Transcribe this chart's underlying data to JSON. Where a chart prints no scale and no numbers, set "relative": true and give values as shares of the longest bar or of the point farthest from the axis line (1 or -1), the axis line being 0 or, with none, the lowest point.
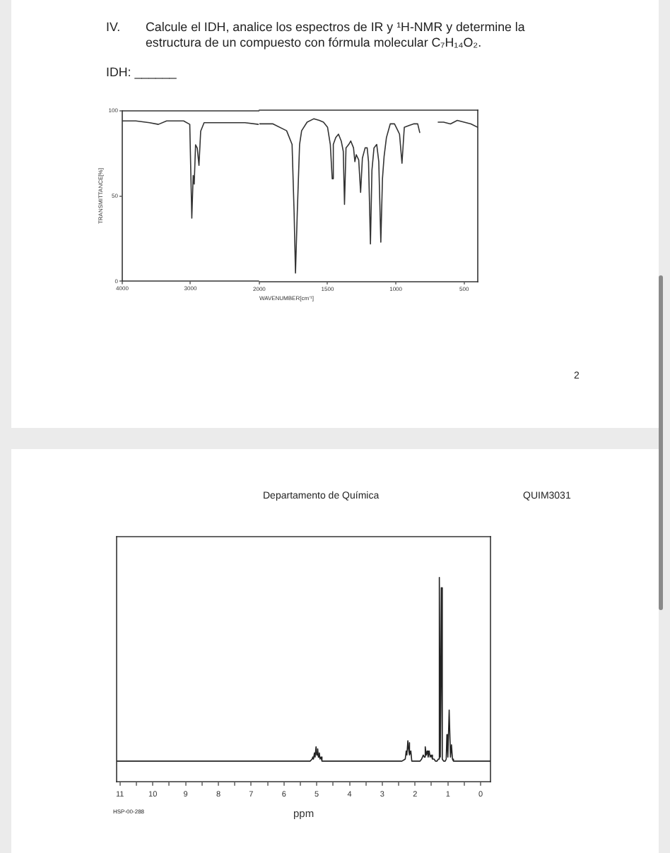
{
  "chart_data": [
    {
      "type": "line",
      "title": "Calcule el IDH, analice los espectros de IR y ¹H-NMR y determine la estructura de un compuesto con fórmula molecular C₇H₁₄O₂.",
      "annotations": [
        "IV.",
        "IDH: ______",
        "2"
      ],
      "ylabel": "TRANSMITTANCE[%]",
      "x": [
        4000,
        3800,
        3600,
        3470,
        3350,
        3100,
        3010,
        2980,
        2960,
        2945,
        2925,
        2900,
        2875,
        2850,
        2800,
        2500,
        2200,
        2000
      ],
      "series": [
        {
          "color": "#333333",
          "values": [
            94,
            94,
            93,
            92,
            94,
            94,
            92,
            37,
            62,
            57,
            80,
            78,
            68,
            88,
            93,
            93,
            93,
            92
          ]
        }
      ],
      "xlim": [
        4000,
        2000
      ],
      "xticks": [
        4000,
        3000
      ],
      "ylim": [
        0,
        100
      ],
      "yticks": [
        0,
        50,
        100
      ],
      "marker": "none"
    },
    {
      "type": "line",
      "xlabel": "WAVENUMBER[cm⁻¹]",
      "x": [
        2000,
        1900,
        1800,
        1760,
        1745,
        1735,
        1722,
        1705,
        1690,
        1650,
        1600,
        1560,
        1530,
        1500,
        1480,
        1466,
        1458,
        1440,
        1420,
        1400,
        1385,
        1376,
        1365,
        1345,
        1330,
        1310,
        1300,
        1290,
        1272,
        1258,
        1245,
        1225,
        1210,
        1200,
        1186,
        1175,
        1160,
        1140,
        1125,
        1110,
        1098,
        1086,
        1069,
        1041,
        1010,
        985,
        973,
        955,
        938,
        904,
        870,
        840,
        825,
        760,
        690,
        650,
        600,
        550,
        500,
        450,
        400
      ],
      "series": [
        {
          "color": "#333333",
          "values": [
            92,
            92,
            88,
            80,
            40,
            5,
            40,
            80,
            88,
            93,
            95,
            94,
            93,
            90,
            80,
            60,
            80,
            84,
            86,
            82,
            76,
            45,
            78,
            80,
            82,
            78,
            70,
            74,
            71,
            52,
            72,
            78,
            78,
            70,
            22,
            65,
            78,
            80,
            70,
            23,
            60,
            73,
            84,
            92,
            92,
            88,
            86,
            69,
            90,
            91,
            92,
            92,
            87,
            null,
            93,
            93,
            92,
            94,
            93,
            92,
            90
          ]
        }
      ],
      "xlim": [
        2000,
        400
      ],
      "xticks": [
        2000,
        1500,
        1000,
        500
      ],
      "ylim": [
        0,
        100
      ],
      "yticks": [
        0,
        50,
        100
      ],
      "tick_labels": "x",
      "marker": "none"
    },
    {
      "type": "line",
      "title": "Departamento de Química",
      "annotations": [
        "QUIM3031",
        "HSP-00-288"
      ],
      "xlabel": "ppm",
      "x": [
        11.1,
        5.2,
        5.14,
        5.12,
        5.1,
        5.07,
        5.05,
        5.02,
        5.0,
        4.97,
        4.95,
        4.92,
        4.9,
        4.87,
        4.84,
        4.8,
        2.4,
        2.3,
        2.27,
        2.25,
        2.22,
        2.2,
        2.18,
        2.16,
        2.13,
        2.1,
        1.85,
        1.8,
        1.75,
        1.72,
        1.69,
        1.66,
        1.63,
        1.6,
        1.57,
        1.54,
        1.51,
        1.47,
        1.42,
        1.38,
        1.33,
        1.29,
        1.26,
        1.23,
        1.2,
        1.17,
        1.13,
        1.08,
        1.05,
        1.03,
        1.0,
        0.96,
        0.92,
        0.89,
        0.86,
        0.83,
        -0.3
      ],
      "series": [
        {
          "color": "#222222",
          "values": [
            0.1,
            0.1,
            0.11,
            0.12,
            0.11,
            0.14,
            0.12,
            0.17,
            0.13,
            0.16,
            0.12,
            0.14,
            0.11,
            0.12,
            0.1,
            0.1,
            0.1,
            0.11,
            0.15,
            0.13,
            0.2,
            0.16,
            0.19,
            0.13,
            0.15,
            0.1,
            0.1,
            0.11,
            0.13,
            0.12,
            0.17,
            0.13,
            0.15,
            0.12,
            0.15,
            0.12,
            0.13,
            0.11,
            0.11,
            0.1,
            0.1,
            0.11,
            1.0,
            0.12,
            0.95,
            0.11,
            0.1,
            0.1,
            0.11,
            0.23,
            0.12,
            0.35,
            0.12,
            0.18,
            0.11,
            0.1,
            0.1
          ]
        }
      ],
      "relative": true,
      "xlim": [
        11.1,
        -0.3
      ],
      "xticks": [
        11,
        {
          "value": 10.5,
          "label": null
        },
        10,
        {
          "value": 9.5,
          "label": null
        },
        9,
        {
          "value": 8.5,
          "label": null
        },
        8,
        {
          "value": 7.5,
          "label": null
        },
        7,
        {
          "value": 6.5,
          "label": null
        },
        6,
        {
          "value": 5.5,
          "label": null
        },
        5,
        {
          "value": 4.5,
          "label": null
        },
        4,
        {
          "value": 3.5,
          "label": null
        },
        3,
        {
          "value": 2.5,
          "label": null
        },
        2,
        {
          "value": 1.5,
          "label": null
        },
        1,
        {
          "value": 0.5,
          "label": null
        },
        0
      ],
      "marker": "none"
    }
  ]
}
